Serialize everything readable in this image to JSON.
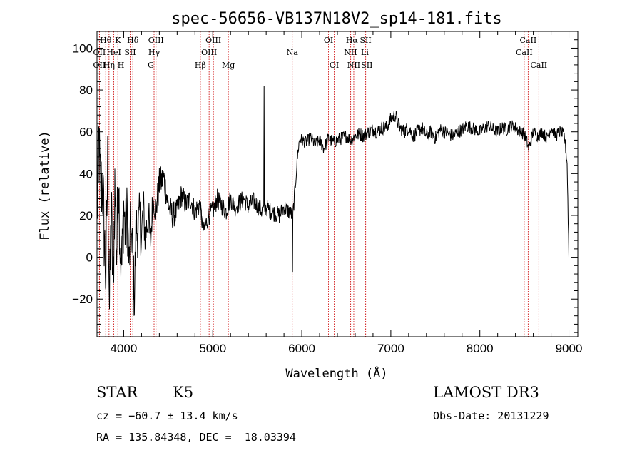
{
  "chart_data": {
    "type": "line",
    "title": "spec-56656-VB137N18V2_sp14-181.fits",
    "xlabel": "Wavelength (Å)",
    "ylabel": "Flux (relative)",
    "xlim": [
      3700,
      9100
    ],
    "ylim": [
      -38,
      108
    ],
    "x_ticks": [
      4000,
      5000,
      6000,
      7000,
      8000,
      9000
    ],
    "y_ticks": [
      -20,
      0,
      20,
      40,
      60,
      80,
      100
    ],
    "y_tick_labels": [
      "−20",
      "0",
      "20",
      "40",
      "60",
      "80",
      "100"
    ],
    "grid": false,
    "line_color": "#000000",
    "marker_color": "#cc0000",
    "spectrum_profile": [
      [
        3700,
        20
      ],
      [
        3720,
        55
      ],
      [
        3740,
        30
      ],
      [
        3760,
        38
      ],
      [
        3780,
        12
      ],
      [
        3800,
        -10
      ],
      [
        3820,
        45
      ],
      [
        3840,
        -25
      ],
      [
        3860,
        25
      ],
      [
        3880,
        -18
      ],
      [
        3900,
        35
      ],
      [
        3920,
        0
      ],
      [
        3940,
        42
      ],
      [
        3960,
        5
      ],
      [
        3980,
        -5
      ],
      [
        4000,
        25
      ],
      [
        4020,
        10
      ],
      [
        4040,
        22
      ],
      [
        4060,
        -5
      ],
      [
        4080,
        15
      ],
      [
        4100,
        0
      ],
      [
        4120,
        -20
      ],
      [
        4140,
        15
      ],
      [
        4160,
        12
      ],
      [
        4180,
        20
      ],
      [
        4200,
        8
      ],
      [
        4220,
        25
      ],
      [
        4240,
        10
      ],
      [
        4260,
        15
      ],
      [
        4280,
        20
      ],
      [
        4300,
        5
      ],
      [
        4320,
        22
      ],
      [
        4340,
        28
      ],
      [
        4360,
        22
      ],
      [
        4400,
        35
      ],
      [
        4450,
        38
      ],
      [
        4500,
        25
      ],
      [
        4550,
        20
      ],
      [
        4600,
        22
      ],
      [
        4650,
        30
      ],
      [
        4700,
        25
      ],
      [
        4750,
        28
      ],
      [
        4800,
        22
      ],
      [
        4850,
        25
      ],
      [
        4900,
        12
      ],
      [
        4950,
        20
      ],
      [
        5000,
        22
      ],
      [
        5050,
        28
      ],
      [
        5100,
        25
      ],
      [
        5150,
        22
      ],
      [
        5200,
        28
      ],
      [
        5250,
        24
      ],
      [
        5300,
        26
      ],
      [
        5350,
        28
      ],
      [
        5400,
        24
      ],
      [
        5450,
        27
      ],
      [
        5500,
        25
      ],
      [
        5550,
        22
      ],
      [
        5600,
        24
      ],
      [
        5650,
        22
      ],
      [
        5700,
        21
      ],
      [
        5750,
        20
      ],
      [
        5800,
        24
      ],
      [
        5850,
        22
      ],
      [
        5900,
        20
      ],
      [
        5920,
        30
      ],
      [
        5940,
        42
      ],
      [
        5960,
        52
      ],
      [
        5980,
        57
      ],
      [
        6000,
        56
      ],
      [
        6050,
        55
      ],
      [
        6100,
        57
      ],
      [
        6150,
        54
      ],
      [
        6200,
        56
      ],
      [
        6250,
        52
      ],
      [
        6300,
        57
      ],
      [
        6350,
        55
      ],
      [
        6400,
        56
      ],
      [
        6450,
        57
      ],
      [
        6500,
        58
      ],
      [
        6550,
        56
      ],
      [
        6600,
        58
      ],
      [
        6650,
        59
      ],
      [
        6700,
        58
      ],
      [
        6750,
        60
      ],
      [
        6800,
        61
      ],
      [
        6850,
        60
      ],
      [
        6900,
        62
      ],
      [
        6950,
        62
      ],
      [
        7000,
        66
      ],
      [
        7050,
        68
      ],
      [
        7100,
        62
      ],
      [
        7150,
        60
      ],
      [
        7200,
        62
      ],
      [
        7250,
        58
      ],
      [
        7300,
        60
      ],
      [
        7350,
        62
      ],
      [
        7400,
        58
      ],
      [
        7450,
        60
      ],
      [
        7500,
        57
      ],
      [
        7550,
        61
      ],
      [
        7600,
        60
      ],
      [
        7650,
        59
      ],
      [
        7700,
        58
      ],
      [
        7750,
        60
      ],
      [
        7800,
        61
      ],
      [
        7850,
        63
      ],
      [
        7900,
        62
      ],
      [
        7950,
        61
      ],
      [
        8000,
        60
      ],
      [
        8050,
        62
      ],
      [
        8100,
        63
      ],
      [
        8150,
        61
      ],
      [
        8200,
        60
      ],
      [
        8250,
        62
      ],
      [
        8300,
        61
      ],
      [
        8350,
        63
      ],
      [
        8400,
        62
      ],
      [
        8450,
        60
      ],
      [
        8500,
        59
      ],
      [
        8550,
        52
      ],
      [
        8600,
        60
      ],
      [
        8650,
        58
      ],
      [
        8700,
        60
      ],
      [
        8750,
        57
      ],
      [
        8800,
        62
      ],
      [
        8850,
        58
      ],
      [
        8900,
        60
      ],
      [
        8950,
        58
      ],
      [
        8980,
        45
      ],
      [
        9000,
        1
      ]
    ],
    "noise_amplitude": [
      [
        3700,
        22
      ],
      [
        4000,
        18
      ],
      [
        4300,
        9
      ],
      [
        4600,
        6
      ],
      [
        5000,
        5
      ],
      [
        5900,
        4
      ],
      [
        6000,
        3
      ],
      [
        7000,
        3.5
      ],
      [
        8500,
        3
      ],
      [
        9000,
        3
      ]
    ],
    "features": [
      {
        "name": "sky emission spike",
        "x": 5577,
        "y_peak": 82
      },
      {
        "name": "absorption dip",
        "x": 5895,
        "y_min": -7
      }
    ],
    "spectral_lines": [
      {
        "label": "Hθ",
        "x": 3798,
        "row": 0
      },
      {
        "label": "OII",
        "x": 3727,
        "row": 1
      },
      {
        "label": "OII",
        "x": 3727,
        "row": 2
      },
      {
        "label": "Hη",
        "x": 3835,
        "row": 2
      },
      {
        "label": "HeI",
        "x": 3889,
        "row": 1
      },
      {
        "label": "K",
        "x": 3934,
        "row": 0
      },
      {
        "label": "H",
        "x": 3969,
        "row": 2
      },
      {
        "label": "SII",
        "x": 4072,
        "row": 1
      },
      {
        "label": "Hδ",
        "x": 4102,
        "row": 0
      },
      {
        "label": "OIII",
        "x": 4363,
        "row": 0
      },
      {
        "label": "Hγ",
        "x": 4341,
        "row": 1
      },
      {
        "label": "G",
        "x": 4305,
        "row": 2
      },
      {
        "label": "Hβ",
        "x": 4861,
        "row": 2
      },
      {
        "label": "OIII",
        "x": 4959,
        "row": 1
      },
      {
        "label": "OIII",
        "x": 5007,
        "row": 0
      },
      {
        "label": "Mg",
        "x": 5175,
        "row": 2
      },
      {
        "label": "Na",
        "x": 5893,
        "row": 1
      },
      {
        "label": "OI",
        "x": 6300,
        "row": 0
      },
      {
        "label": "OI",
        "x": 6364,
        "row": 2
      },
      {
        "label": "NII",
        "x": 6548,
        "row": 1
      },
      {
        "label": "Hα",
        "x": 6563,
        "row": 0
      },
      {
        "label": "NII",
        "x": 6584,
        "row": 2
      },
      {
        "label": "Li",
        "x": 6708,
        "row": 1
      },
      {
        "label": "SII",
        "x": 6717,
        "row": 0
      },
      {
        "label": "SII",
        "x": 6731,
        "row": 2
      },
      {
        "label": "CaII",
        "x": 8498,
        "row": 1
      },
      {
        "label": "CaII",
        "x": 8542,
        "row": 0
      },
      {
        "label": "CaII",
        "x": 8662,
        "row": 2
      }
    ]
  },
  "info": {
    "class": "STAR",
    "subclass": "K5",
    "survey": "LAMOST DR3",
    "cz": "cz = −60.7 ± 13.4 km/s",
    "obs_date": "Obs-Date: 20131229",
    "coords": "RA = 135.84348, DEC =  18.03394"
  }
}
